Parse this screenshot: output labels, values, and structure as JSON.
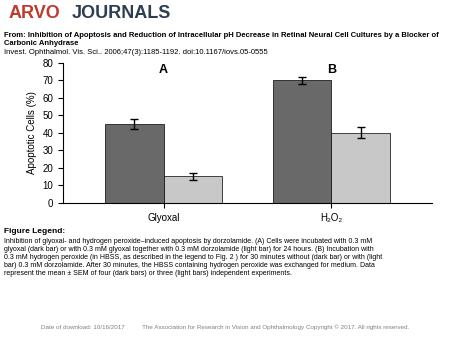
{
  "chart_data": {
    "type": "bar",
    "title": "From: Inhibition of Apoptosis and Reduction of Intracellular pH Decrease in Retinal Neural Cell Cultures by a Blocker of\nCarbonic Anhydrase",
    "subtitle": "Invest. Ophthalmol. Vis. Sci.. 2006;47(3):1185-1192. doi:10.1167/iovs.05-0555",
    "y_label": "Apoptotic Cells (%)",
    "categories": [
      "Glyoxal",
      "H₂O₂"
    ],
    "series": [
      {
        "color": "#696969",
        "values": [
          45,
          70
        ],
        "errors": [
          3,
          2
        ]
      },
      {
        "color": "#c8c8c8",
        "values": [
          15,
          40
        ],
        "errors": [
          2,
          3
        ]
      }
    ],
    "ylim": [
      0,
      80
    ],
    "yticks": [
      0,
      10,
      20,
      30,
      40,
      50,
      60,
      70,
      80
    ],
    "grid": false,
    "annotations": [
      {
        "text": "A",
        "category": "Glyoxal"
      },
      {
        "text": "B",
        "category": "H₂O₂"
      },
      {
        "text": "ARVO"
      },
      {
        "text": "JOURNALS"
      },
      {
        "text": "Figure Legend:"
      },
      {
        "text": "Inhibition of glyoxal- and hydrogen peroxide–induced apoptosis by dorzolamide. (A) Cells were incubated with 0.3 mM\nglyoxal (dark bar) or with 0.3 mM glyoxal together with 0.3 mM dorzolamide (light bar) for 24 hours. (B) Incubation with\n0.3 mM hydrogen peroxide (in HBSS, as described in the legend to Fig. 2 ) for 30 minutes without (dark bar) or with (light\nbar) 0.3 mM dorzolamide. After 30 minutes, the HBSS containing hydrogen peroxide was exchanged for medium. Data\nrepresent the mean ± SEM of four (dark bars) or three (light bars) independent experiments."
      },
      {
        "text": "Date of download: 10/16/2017          The Association for Research in Vision and Ophthalmology Copyright © 2017. All rights reserved."
      }
    ]
  }
}
